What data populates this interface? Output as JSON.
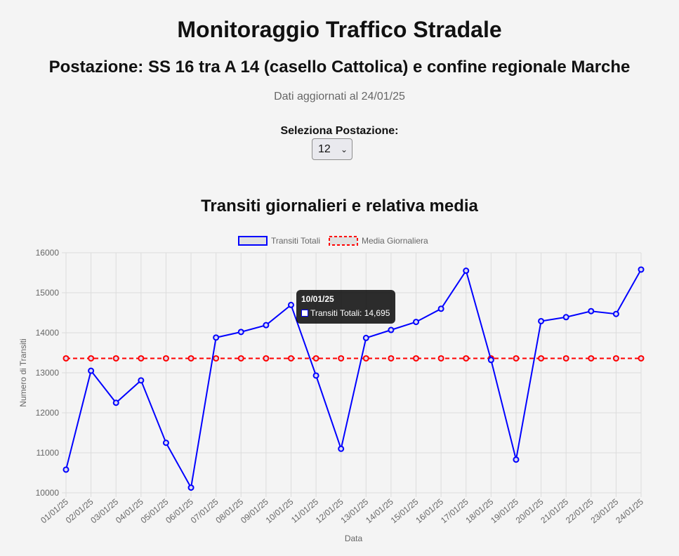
{
  "header": {
    "title": "Monitoraggio Traffico Stradale",
    "station": "Postazione: SS 16 tra A 14 (casello Cattolica) e confine regionale Marche",
    "updated": "Dati aggiornati al 24/01/25"
  },
  "selector": {
    "label": "Seleziona Postazione:",
    "value": "12"
  },
  "chart_title": "Transiti giornalieri e relativa media",
  "tooltip": {
    "title": "10/01/25",
    "label": "Transiti Totali: 14,695"
  },
  "chart_data": {
    "type": "line",
    "xlabel": "Data",
    "ylabel": "Numero di Transiti",
    "ylim": [
      10000,
      16000
    ],
    "yticks": [
      10000,
      11000,
      12000,
      13000,
      14000,
      15000,
      16000
    ],
    "grid": true,
    "legend_position": "top",
    "categories": [
      "01/01/25",
      "02/01/25",
      "03/01/25",
      "04/01/25",
      "05/01/25",
      "06/01/25",
      "07/01/25",
      "08/01/25",
      "09/01/25",
      "10/01/25",
      "11/01/25",
      "12/01/25",
      "13/01/25",
      "14/01/25",
      "15/01/25",
      "16/01/25",
      "17/01/25",
      "18/01/25",
      "19/01/25",
      "20/01/25",
      "21/01/25",
      "22/01/25",
      "23/01/25",
      "24/01/25"
    ],
    "series": [
      {
        "name": "Transiti Totali",
        "color": "#0000ff",
        "style": "solid",
        "values": [
          10580,
          13050,
          12250,
          12810,
          11250,
          10130,
          13880,
          14020,
          14190,
          14695,
          12930,
          11100,
          13870,
          14070,
          14270,
          14600,
          15550,
          13320,
          10830,
          14290,
          14390,
          14540,
          14470,
          15580
        ]
      },
      {
        "name": "Media Giornaliera",
        "color": "#ff0000",
        "style": "dashed",
        "values": [
          13360,
          13360,
          13360,
          13360,
          13360,
          13360,
          13360,
          13360,
          13360,
          13360,
          13360,
          13360,
          13360,
          13360,
          13360,
          13360,
          13360,
          13360,
          13360,
          13360,
          13360,
          13360,
          13360,
          13360
        ]
      }
    ]
  }
}
